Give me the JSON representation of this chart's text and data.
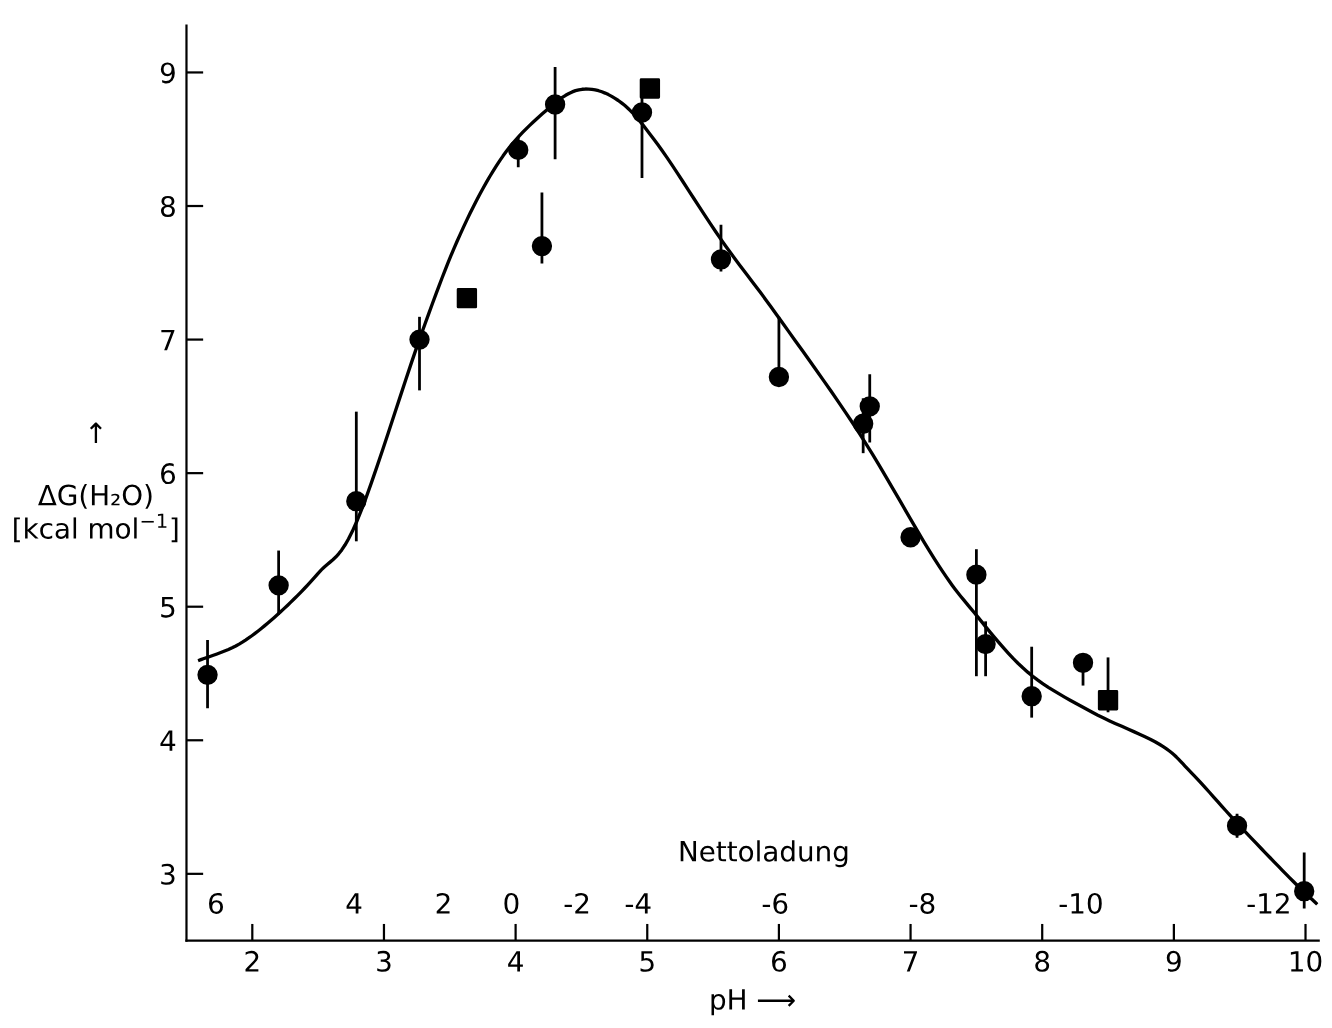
{
  "chart_data": {
    "type": "scatter",
    "xlabel": "pH ⟶",
    "ylabel": "↑\n\nΔG(H₂O)\n[kcal mol$^{−1}$]",
    "xlim": [
      1.5,
      10.1
    ],
    "xticks": [
      2,
      3,
      4,
      5,
      6,
      7,
      8,
      9,
      10
    ],
    "ylim": [
      2.5,
      9.35
    ],
    "yticks": [
      3,
      4,
      5,
      6,
      7,
      8,
      9
    ],
    "annotations": [
      "Nettoladung",
      "6",
      "4",
      "2",
      "0",
      "-2",
      "-4",
      "-6",
      "-8",
      "-10",
      "-12"
    ],
    "grid": false,
    "legend": false,
    "series": [
      {
        "marker": "circle",
        "color": "#000000",
        "x": [
          1.66,
          2.2,
          2.79,
          3.27,
          4.02,
          4.2,
          4.3,
          4.96,
          5.56,
          6.0,
          6.64,
          6.69,
          7.0,
          7.5,
          7.57,
          7.92,
          8.31,
          9.48,
          9.99
        ],
        "values": [
          4.49,
          5.16,
          5.79,
          7.0,
          8.42,
          7.7,
          8.76,
          8.7,
          7.6,
          6.72,
          6.37,
          6.5,
          5.52,
          5.24,
          4.72,
          4.33,
          4.58,
          3.36,
          2.87
        ],
        "errors": [
          [
            4.25,
            4.74
          ],
          [
            4.95,
            5.41
          ],
          [
            5.5,
            6.45
          ],
          [
            6.63,
            7.16
          ],
          [
            8.3,
            8.5
          ],
          [
            7.58,
            8.09
          ],
          [
            8.36,
            9.03
          ],
          [
            8.22,
            8.82
          ],
          [
            7.52,
            7.85
          ],
          [
            6.72,
            7.16
          ],
          [
            6.16,
            6.55
          ],
          [
            6.24,
            6.73
          ],
          null,
          [
            4.49,
            5.42
          ],
          [
            4.49,
            4.88
          ],
          [
            4.18,
            4.69
          ],
          [
            4.42,
            4.62
          ],
          [
            3.28,
            3.44
          ],
          [
            2.75,
            3.15
          ]
        ]
      },
      {
        "marker": "square",
        "color": "#000000",
        "x": [
          3.63,
          5.02,
          8.5
        ],
        "values": [
          7.31,
          8.88,
          4.3
        ],
        "errors": [
          null,
          null,
          [
            4.22,
            4.61
          ]
        ]
      },
      {
        "type": "line",
        "marker": "none",
        "line_style": "solid",
        "color": "#000000",
        "x": [
          1.6,
          1.9,
          2.19,
          2.5,
          2.79,
          3.28,
          3.58,
          3.88,
          4.18,
          4.48,
          4.78,
          5.08,
          5.56,
          5.98,
          6.61,
          7.18,
          7.48,
          7.89,
          8.38,
          8.89,
          9.13,
          9.49,
          9.88,
          10.08
        ],
        "values": [
          4.6,
          4.72,
          4.94,
          5.25,
          5.63,
          7.03,
          7.79,
          8.34,
          8.67,
          8.87,
          8.79,
          8.46,
          7.75,
          7.19,
          6.3,
          5.36,
          4.96,
          4.51,
          4.21,
          3.97,
          3.76,
          3.37,
          2.97,
          2.78
        ]
      }
    ]
  }
}
